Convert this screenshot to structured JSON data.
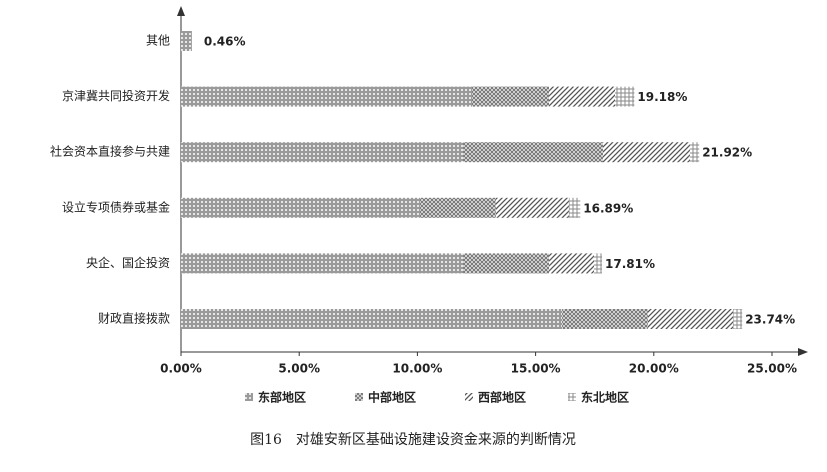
{
  "chart_data": {
    "type": "stacked-bar-horizontal",
    "caption": "图16　对雄安新区基础设施建设资金来源的判断情况",
    "categories": [
      "其他",
      "京津冀共同投资开发",
      "社会资本直接参与共建",
      "设立专项债券或基金",
      "央企、国企投资",
      "财政直接拨款"
    ],
    "series": [
      {
        "name": "东部地区",
        "color": "#9a9a9a",
        "pattern": "dots",
        "values": [
          0.46,
          12.31,
          11.93,
          10.11,
          11.93,
          16.12
        ]
      },
      {
        "name": "中部地区",
        "color": "#7a7a7a",
        "pattern": "crosshatch",
        "values": [
          0,
          3.26,
          5.92,
          3.21,
          3.64,
          3.63
        ]
      },
      {
        "name": "西部地区",
        "color": "#555555",
        "pattern": "diagonal",
        "values": [
          0,
          2.79,
          3.68,
          3.09,
          1.9,
          3.6
        ]
      },
      {
        "name": "东北地区",
        "color": "#8a8a8a",
        "pattern": "grid",
        "values": [
          0,
          0.82,
          0.39,
          0.48,
          0.34,
          0.39
        ]
      }
    ],
    "totals": [
      0.46,
      19.18,
      21.92,
      16.89,
      17.81,
      23.74
    ],
    "total_labels": [
      "0.46%",
      "19.18%",
      "21.92%",
      "16.89%",
      "17.81%",
      "23.74%"
    ],
    "xlim": [
      0,
      25
    ],
    "xticks": [
      {
        "value": 0,
        "label": "0.00%"
      },
      {
        "value": 5,
        "label": "5.00%"
      },
      {
        "value": 10,
        "label": "10.00%"
      },
      {
        "value": 15,
        "label": "15.00%"
      },
      {
        "value": 20,
        "label": "20.00%"
      },
      {
        "value": 25,
        "label": "25.00%"
      }
    ],
    "legend": "bottom"
  }
}
